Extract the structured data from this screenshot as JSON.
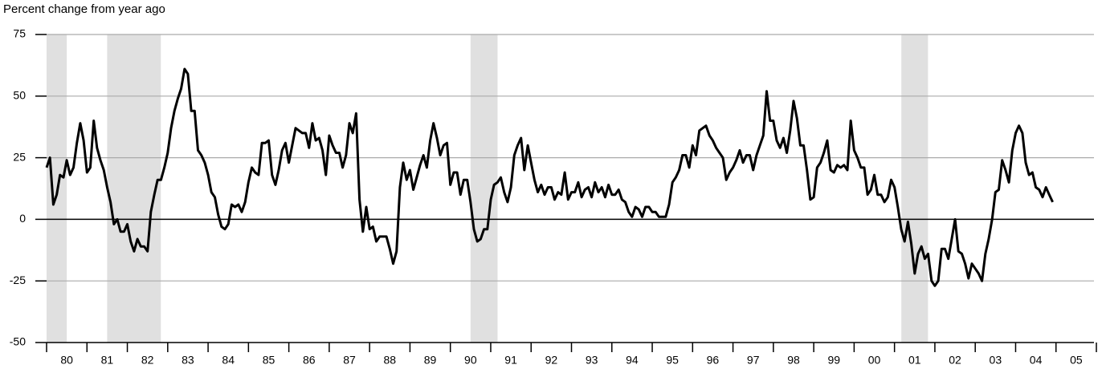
{
  "chart_data": {
    "type": "line",
    "title": "Percent change from year ago",
    "xlim": [
      1980,
      2006
    ],
    "xticks": [
      {
        "value": 1980,
        "label": "80"
      },
      {
        "value": 1981,
        "label": "81"
      },
      {
        "value": 1982,
        "label": "82"
      },
      {
        "value": 1983,
        "label": "83"
      },
      {
        "value": 1984,
        "label": "84"
      },
      {
        "value": 1985,
        "label": "85"
      },
      {
        "value": 1986,
        "label": "86"
      },
      {
        "value": 1987,
        "label": "87"
      },
      {
        "value": 1988,
        "label": "88"
      },
      {
        "value": 1989,
        "label": "89"
      },
      {
        "value": 1990,
        "label": "90"
      },
      {
        "value": 1991,
        "label": "91"
      },
      {
        "value": 1992,
        "label": "92"
      },
      {
        "value": 1993,
        "label": "93"
      },
      {
        "value": 1994,
        "label": "94"
      },
      {
        "value": 1995,
        "label": "95"
      },
      {
        "value": 1996,
        "label": "96"
      },
      {
        "value": 1997,
        "label": "97"
      },
      {
        "value": 1998,
        "label": "98"
      },
      {
        "value": 1999,
        "label": "99"
      },
      {
        "value": 2000,
        "label": "00"
      },
      {
        "value": 2001,
        "label": "01"
      },
      {
        "value": 2002,
        "label": "02"
      },
      {
        "value": 2003,
        "label": "03"
      },
      {
        "value": 2004,
        "label": "04"
      },
      {
        "value": 2005,
        "label": "05"
      }
    ],
    "ylim": [
      -50,
      75
    ],
    "yticks": [
      -50,
      -25,
      0,
      25,
      50,
      75
    ],
    "grid": true,
    "recessions": [
      [
        1980.0,
        1980.5
      ],
      [
        1981.5,
        1982.83
      ],
      [
        1990.5,
        1991.17
      ],
      [
        2001.17,
        2001.83
      ]
    ],
    "recession_color": "#e0e0e0",
    "series": [
      {
        "color": "#000000",
        "x": [
          1980.0,
          1980.083,
          1980.167,
          1980.25,
          1980.333,
          1980.417,
          1980.5,
          1980.583,
          1980.667,
          1980.75,
          1980.833,
          1980.917,
          1981.0,
          1981.083,
          1981.167,
          1981.25,
          1981.333,
          1981.417,
          1981.5,
          1981.583,
          1981.667,
          1981.75,
          1981.833,
          1981.917,
          1982.0,
          1982.083,
          1982.167,
          1982.25,
          1982.333,
          1982.417,
          1982.5,
          1982.583,
          1982.667,
          1982.75,
          1982.833,
          1982.917,
          1983.0,
          1983.083,
          1983.167,
          1983.25,
          1983.333,
          1983.417,
          1983.5,
          1983.583,
          1983.667,
          1983.75,
          1983.833,
          1983.917,
          1984.0,
          1984.083,
          1984.167,
          1984.25,
          1984.333,
          1984.417,
          1984.5,
          1984.583,
          1984.667,
          1984.75,
          1984.833,
          1984.917,
          1985.0,
          1985.083,
          1985.167,
          1985.25,
          1985.333,
          1985.417,
          1985.5,
          1985.583,
          1985.667,
          1985.75,
          1985.833,
          1985.917,
          1986.0,
          1986.083,
          1986.167,
          1986.25,
          1986.333,
          1986.417,
          1986.5,
          1986.583,
          1986.667,
          1986.75,
          1986.833,
          1986.917,
          1987.0,
          1987.083,
          1987.167,
          1987.25,
          1987.333,
          1987.417,
          1987.5,
          1987.583,
          1987.667,
          1987.75,
          1987.833,
          1987.917,
          1988.0,
          1988.083,
          1988.167,
          1988.25,
          1988.333,
          1988.417,
          1988.5,
          1988.583,
          1988.667,
          1988.75,
          1988.833,
          1988.917,
          1989.0,
          1989.083,
          1989.167,
          1989.25,
          1989.333,
          1989.417,
          1989.5,
          1989.583,
          1989.667,
          1989.75,
          1989.833,
          1989.917,
          1990.0,
          1990.083,
          1990.167,
          1990.25,
          1990.333,
          1990.417,
          1990.5,
          1990.583,
          1990.667,
          1990.75,
          1990.833,
          1990.917,
          1991.0,
          1991.083,
          1991.167,
          1991.25,
          1991.333,
          1991.417,
          1991.5,
          1991.583,
          1991.667,
          1991.75,
          1991.833,
          1991.917,
          1992.0,
          1992.083,
          1992.167,
          1992.25,
          1992.333,
          1992.417,
          1992.5,
          1992.583,
          1992.667,
          1992.75,
          1992.833,
          1992.917,
          1993.0,
          1993.083,
          1993.167,
          1993.25,
          1993.333,
          1993.417,
          1993.5,
          1993.583,
          1993.667,
          1993.75,
          1993.833,
          1993.917,
          1994.0,
          1994.083,
          1994.167,
          1994.25,
          1994.333,
          1994.417,
          1994.5,
          1994.583,
          1994.667,
          1994.75,
          1994.833,
          1994.917,
          1995.0,
          1995.083,
          1995.167,
          1995.25,
          1995.333,
          1995.417,
          1995.5,
          1995.583,
          1995.667,
          1995.75,
          1995.833,
          1995.917,
          1996.0,
          1996.083,
          1996.167,
          1996.25,
          1996.333,
          1996.417,
          1996.5,
          1996.583,
          1996.667,
          1996.75,
          1996.833,
          1996.917,
          1997.0,
          1997.083,
          1997.167,
          1997.25,
          1997.333,
          1997.417,
          1997.5,
          1997.583,
          1997.667,
          1997.75,
          1997.833,
          1997.917,
          1998.0,
          1998.083,
          1998.167,
          1998.25,
          1998.333,
          1998.417,
          1998.5,
          1998.583,
          1998.667,
          1998.75,
          1998.833,
          1998.917,
          1999.0,
          1999.083,
          1999.167,
          1999.25,
          1999.333,
          1999.417,
          1999.5,
          1999.583,
          1999.667,
          1999.75,
          1999.833,
          1999.917,
          2000.0,
          2000.083,
          2000.167,
          2000.25,
          2000.333,
          2000.417,
          2000.5,
          2000.583,
          2000.667,
          2000.75,
          2000.833,
          2000.917,
          2001.0,
          2001.083,
          2001.167,
          2001.25,
          2001.333,
          2001.417,
          2001.5,
          2001.583,
          2001.667,
          2001.75,
          2001.833,
          2001.917,
          2002.0,
          2002.083,
          2002.167,
          2002.25,
          2002.333,
          2002.417,
          2002.5,
          2002.583,
          2002.667,
          2002.75,
          2002.833,
          2002.917,
          2003.0,
          2003.083,
          2003.167,
          2003.25,
          2003.333,
          2003.417,
          2003.5,
          2003.583,
          2003.667,
          2003.75,
          2003.833,
          2003.917,
          2004.0,
          2004.083,
          2004.167,
          2004.25,
          2004.333,
          2004.417,
          2004.5,
          2004.583,
          2004.667,
          2004.75,
          2004.833,
          2004.917
        ],
        "values": [
          21,
          25,
          6,
          10,
          18,
          17,
          24,
          18,
          21,
          31,
          39,
          32,
          19,
          21,
          40,
          29,
          24,
          20,
          13,
          7,
          -2,
          0,
          -5,
          -5,
          -2,
          -9,
          -13,
          -8,
          -11,
          -11,
          -13,
          3,
          10,
          16,
          16,
          21,
          27,
          37,
          44,
          49,
          53,
          61,
          59,
          44,
          44,
          28,
          26,
          23,
          18,
          11,
          9,
          2,
          -3,
          -4,
          -2,
          6,
          5,
          6,
          3,
          7,
          15,
          21,
          19,
          18,
          31,
          31,
          32,
          18,
          14,
          20,
          28,
          31,
          23,
          30,
          37,
          36,
          35,
          35,
          29,
          39,
          32,
          33,
          28,
          18,
          34,
          30,
          27,
          27,
          21,
          26,
          39,
          35,
          43,
          8,
          -5,
          5,
          -4,
          -3,
          -9,
          -7,
          -7,
          -7,
          -12,
          -18,
          -13,
          13,
          23,
          16,
          20,
          12,
          17,
          22,
          26,
          21,
          32,
          39,
          33,
          26,
          30,
          31,
          14,
          19,
          19,
          10,
          16,
          16,
          7,
          -4,
          -9,
          -8,
          -4,
          -4,
          8,
          14,
          15,
          17,
          11,
          7,
          13,
          26,
          30,
          33,
          20,
          30,
          23,
          16,
          11,
          14,
          10,
          13,
          13,
          8,
          11,
          10,
          19,
          8,
          11,
          11,
          15,
          9,
          12,
          13,
          9,
          15,
          11,
          13,
          9,
          14,
          10,
          10,
          12,
          8,
          7,
          3,
          1,
          5,
          4,
          1,
          5,
          5,
          3,
          3,
          1,
          1,
          1,
          6,
          15,
          17,
          20,
          26,
          26,
          21,
          30,
          26,
          36,
          37,
          38,
          34,
          32,
          29,
          27,
          25,
          16,
          19,
          21,
          24,
          28,
          23,
          26,
          26,
          20,
          26,
          30,
          34,
          52,
          40,
          40,
          32,
          29,
          33,
          27,
          36,
          48,
          41,
          30,
          30,
          20,
          8,
          9,
          21,
          23,
          27,
          32,
          20,
          19,
          22,
          21,
          22,
          20,
          40,
          28,
          25,
          21,
          21,
          10,
          12,
          18,
          10,
          10,
          7,
          9,
          16,
          13,
          5,
          -4,
          -9,
          -1,
          -10,
          -22,
          -14,
          -11,
          -16,
          -14,
          -25,
          -27,
          -25,
          -12,
          -12,
          -16,
          -8,
          0,
          -13,
          -14,
          -18,
          -24,
          -18,
          -20,
          -22,
          -25,
          -14,
          -8,
          0,
          11,
          12,
          24,
          20,
          15,
          28,
          35,
          38,
          35,
          23,
          18,
          19,
          13,
          12,
          9,
          13,
          10,
          7
        ]
      }
    ]
  }
}
